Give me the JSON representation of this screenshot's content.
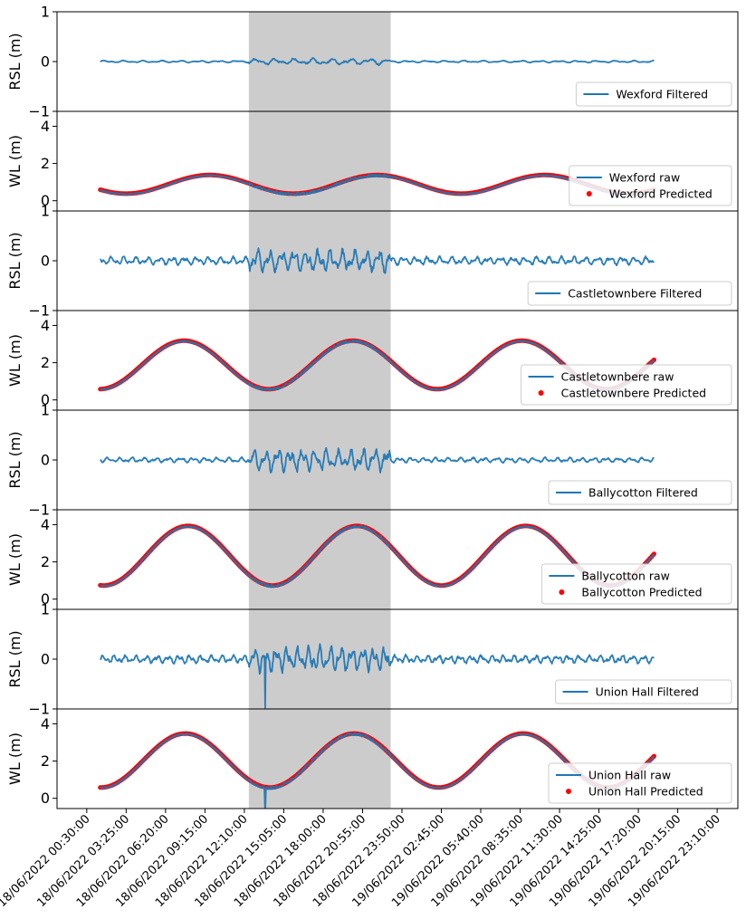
{
  "chart_data": {
    "type": "line",
    "x_tick_labels": [
      "18/06/2022 00:30:00",
      "18/06/2022 03:25:00",
      "18/06/2022 06:20:00",
      "18/06/2022 09:15:00",
      "18/06/2022 12:10:00",
      "18/06/2022 15:05:00",
      "18/06/2022 18:00:00",
      "18/06/2022 20:55:00",
      "18/06/2022 23:50:00",
      "19/06/2022 02:45:00",
      "19/06/2022 05:40:00",
      "19/06/2022 08:35:00",
      "19/06/2022 11:30:00",
      "19/06/2022 14:25:00",
      "19/06/2022 17:20:00",
      "19/06/2022 20:15:00",
      "19/06/2022 23:10:00"
    ],
    "x_range_hours": [
      -3.2,
      47.2
    ],
    "data_range_hours": [
      0.0,
      41.0
    ],
    "highlight_span_hours": [
      11.0,
      21.5
    ],
    "colors": {
      "raw": "#1f77b4",
      "predicted": "#ff0000",
      "highlight": "#cccccc"
    },
    "panels": [
      {
        "kind": "rsl",
        "ylabel": "RSL (m)",
        "ylim": [
          -1,
          1
        ],
        "yticks": [
          "1",
          "0",
          "−1"
        ],
        "legend": [
          {
            "label": "Wexford Filtered",
            "marker": "line"
          }
        ],
        "series": {
          "amplitude_quiet": 0.02,
          "amplitude_storm": 0.06,
          "period_hours": 1.4
        }
      },
      {
        "kind": "wl",
        "ylabel": "WL (m)",
        "ylim": [
          -0.55,
          4.8
        ],
        "yticks": [
          "4",
          "2",
          "0"
        ],
        "legend": [
          {
            "label": "Wexford raw",
            "marker": "line"
          },
          {
            "label": "Wexford Predicted",
            "marker": "dot"
          }
        ],
        "series": {
          "mean_level": 0.85,
          "amplitude": 0.5,
          "first_high_water_hours": 8.1,
          "tidal_period_hours": 12.4,
          "start_level": 1.05,
          "end_level": 1.0
        }
      },
      {
        "kind": "rsl",
        "ylabel": "RSL (m)",
        "ylim": [
          -1,
          1
        ],
        "yticks": [
          "1",
          "0",
          "−1"
        ],
        "legend": [
          {
            "label": "Castletownbere Filtered",
            "marker": "line"
          }
        ],
        "series": {
          "amplitude_quiet": 0.08,
          "amplitude_storm": 0.22,
          "period_hours": 0.9
        }
      },
      {
        "kind": "wl",
        "ylabel": "WL (m)",
        "ylim": [
          -0.55,
          4.8
        ],
        "yticks": [
          "4",
          "2",
          "0"
        ],
        "legend": [
          {
            "label": "Castletownbere raw",
            "marker": "line"
          },
          {
            "label": "Castletownbere Predicted",
            "marker": "dot"
          }
        ],
        "series": {
          "mean_level": 1.85,
          "amplitude": 1.3,
          "first_high_water_hours": 6.2,
          "tidal_period_hours": 12.5,
          "start_level": 0.6,
          "end_level": 1.8
        }
      },
      {
        "kind": "rsl",
        "ylabel": "RSL (m)",
        "ylim": [
          -1,
          1
        ],
        "yticks": [
          "1",
          "0",
          "−1"
        ],
        "legend": [
          {
            "label": "Ballycotton Filtered",
            "marker": "line"
          }
        ],
        "series": {
          "amplitude_quiet": 0.05,
          "amplitude_storm": 0.22,
          "period_hours": 0.9
        }
      },
      {
        "kind": "wl",
        "ylabel": "WL (m)",
        "ylim": [
          -0.55,
          4.8
        ],
        "yticks": [
          "4",
          "2",
          "0"
        ],
        "legend": [
          {
            "label": "Ballycotton raw",
            "marker": "line"
          },
          {
            "label": "Ballycotton Predicted",
            "marker": "dot"
          }
        ],
        "series": {
          "mean_level": 2.3,
          "amplitude": 1.6,
          "first_high_water_hours": 6.5,
          "tidal_period_hours": 12.5,
          "start_level": 1.45,
          "end_level": 2.85
        }
      },
      {
        "kind": "rsl",
        "ylabel": "RSL (m)",
        "ylim": [
          -1,
          1
        ],
        "yticks": [
          "1",
          "0",
          "−1"
        ],
        "legend": [
          {
            "label": "Union Hall Filtered",
            "marker": "line"
          }
        ],
        "series": {
          "amplitude_quiet": 0.08,
          "amplitude_storm": 0.25,
          "period_hours": 0.8,
          "spike_hours": 12.2,
          "spike_value": -0.98
        }
      },
      {
        "kind": "wl",
        "ylabel": "WL (m)",
        "ylim": [
          -0.55,
          4.8
        ],
        "yticks": [
          "4",
          "2",
          "0"
        ],
        "legend": [
          {
            "label": "Union Hall raw",
            "marker": "line"
          },
          {
            "label": "Union Hall Predicted",
            "marker": "dot"
          }
        ],
        "series": {
          "mean_level": 2.0,
          "amplitude": 1.45,
          "first_high_water_hours": 6.3,
          "tidal_period_hours": 12.5,
          "start_level": 0.9,
          "end_level": 2.25,
          "spike_hours": 12.2,
          "spike_value": -0.5
        }
      }
    ]
  }
}
